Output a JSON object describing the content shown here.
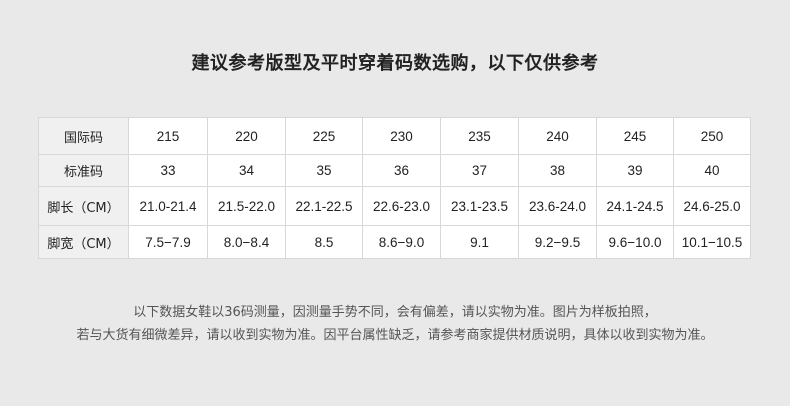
{
  "title": "建议参考版型及平时穿着码数选购，以下仅供参考",
  "table": {
    "rows": [
      {
        "label": "国际码",
        "values": [
          "215",
          "220",
          "225",
          "230",
          "235",
          "240",
          "245",
          "250"
        ]
      },
      {
        "label": "标准码",
        "values": [
          "33",
          "34",
          "35",
          "36",
          "37",
          "38",
          "39",
          "40"
        ]
      },
      {
        "label": "脚长（CM）",
        "values": [
          "21.0-21.4",
          "21.5-22.0",
          "22.1-22.5",
          "22.6-23.0",
          "23.1-23.5",
          "23.6-24.0",
          "24.1-24.5",
          "24.6-25.0"
        ]
      },
      {
        "label": "脚宽（CM）",
        "values": [
          "7.5−7.9",
          "8.0−8.4",
          "8.5",
          "8.6−9.0",
          "9.1",
          "9.2−9.5",
          "9.6−10.0",
          "10.1−10.5"
        ]
      }
    ]
  },
  "notes": [
    "以下数据女鞋以36码测量，因测量手势不同，会有偏差，请以实物为准。图片为样板拍照，",
    "若与大货有细微差异，请以收到实物为准。因平台属性缺乏，请参考商家提供材质说明，具体以收到实物为准。"
  ]
}
